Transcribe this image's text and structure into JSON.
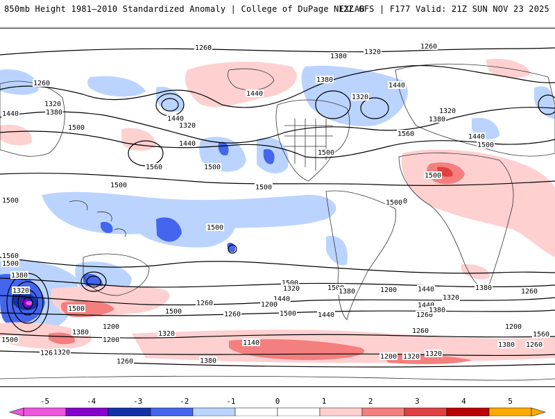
{
  "header": {
    "title": "850mb Height 1981–2010 Standardized Anomaly | College of DuPage NEXLAB",
    "run_info": "12Z GFS | F177 Valid: 21Z SUN NOV 23 2025"
  },
  "map": {
    "contour_labels": [
      "1260",
      "1260",
      "1380",
      "1320",
      "1380",
      "1440",
      "1320",
      "1440",
      "1320",
      "1380",
      "1260",
      "1500",
      "1320",
      "1440",
      "1440",
      "1500",
      "1560",
      "1560",
      "1500",
      "1440",
      "1320",
      "1380",
      "1440",
      "1500",
      "1560",
      "1500",
      "1500",
      "1500",
      "1500",
      "1500",
      "1500",
      "1500",
      "1380",
      "1500",
      "1320",
      "1440",
      "1380",
      "1200",
      "1500",
      "1440",
      "1380",
      "1260",
      "1320",
      "1200",
      "1140",
      "1260",
      "1320",
      "1200",
      "1260",
      "1380",
      "1260",
      "1320",
      "1440",
      "1380",
      "1320",
      "1200",
      "1260",
      "1500",
      "1440",
      "1380",
      "1320",
      "1200",
      "1260",
      "1200",
      "1260",
      "1380",
      "1320",
      "1560",
      "1500",
      "1560",
      "1500",
      "1500",
      "1260"
    ],
    "colors": {
      "neg_5": "#ee55dd",
      "neg_4": "#8800cc",
      "neg_3": "#1133aa",
      "neg_2": "#4466ee",
      "neg_1": "#bbd4ff",
      "zero": "#ffffff",
      "pos_1": "#ffd0d0",
      "pos_2": "#f47f7f",
      "pos_3": "#e04040",
      "pos_4": "#bb0000",
      "pos_5": "#ffaa00"
    }
  },
  "colorbar": {
    "labels": [
      "-5",
      "-4",
      "-3",
      "-2",
      "-1",
      "0",
      "1",
      "2",
      "3",
      "4",
      "5"
    ],
    "segments": [
      "#ee55dd",
      "#8800cc",
      "#1133aa",
      "#4466ee",
      "#bbd4ff",
      "#ffffff",
      "#ffffff",
      "#ffd0d0",
      "#f47f7f",
      "#e04040",
      "#bb0000",
      "#ffaa00"
    ]
  }
}
